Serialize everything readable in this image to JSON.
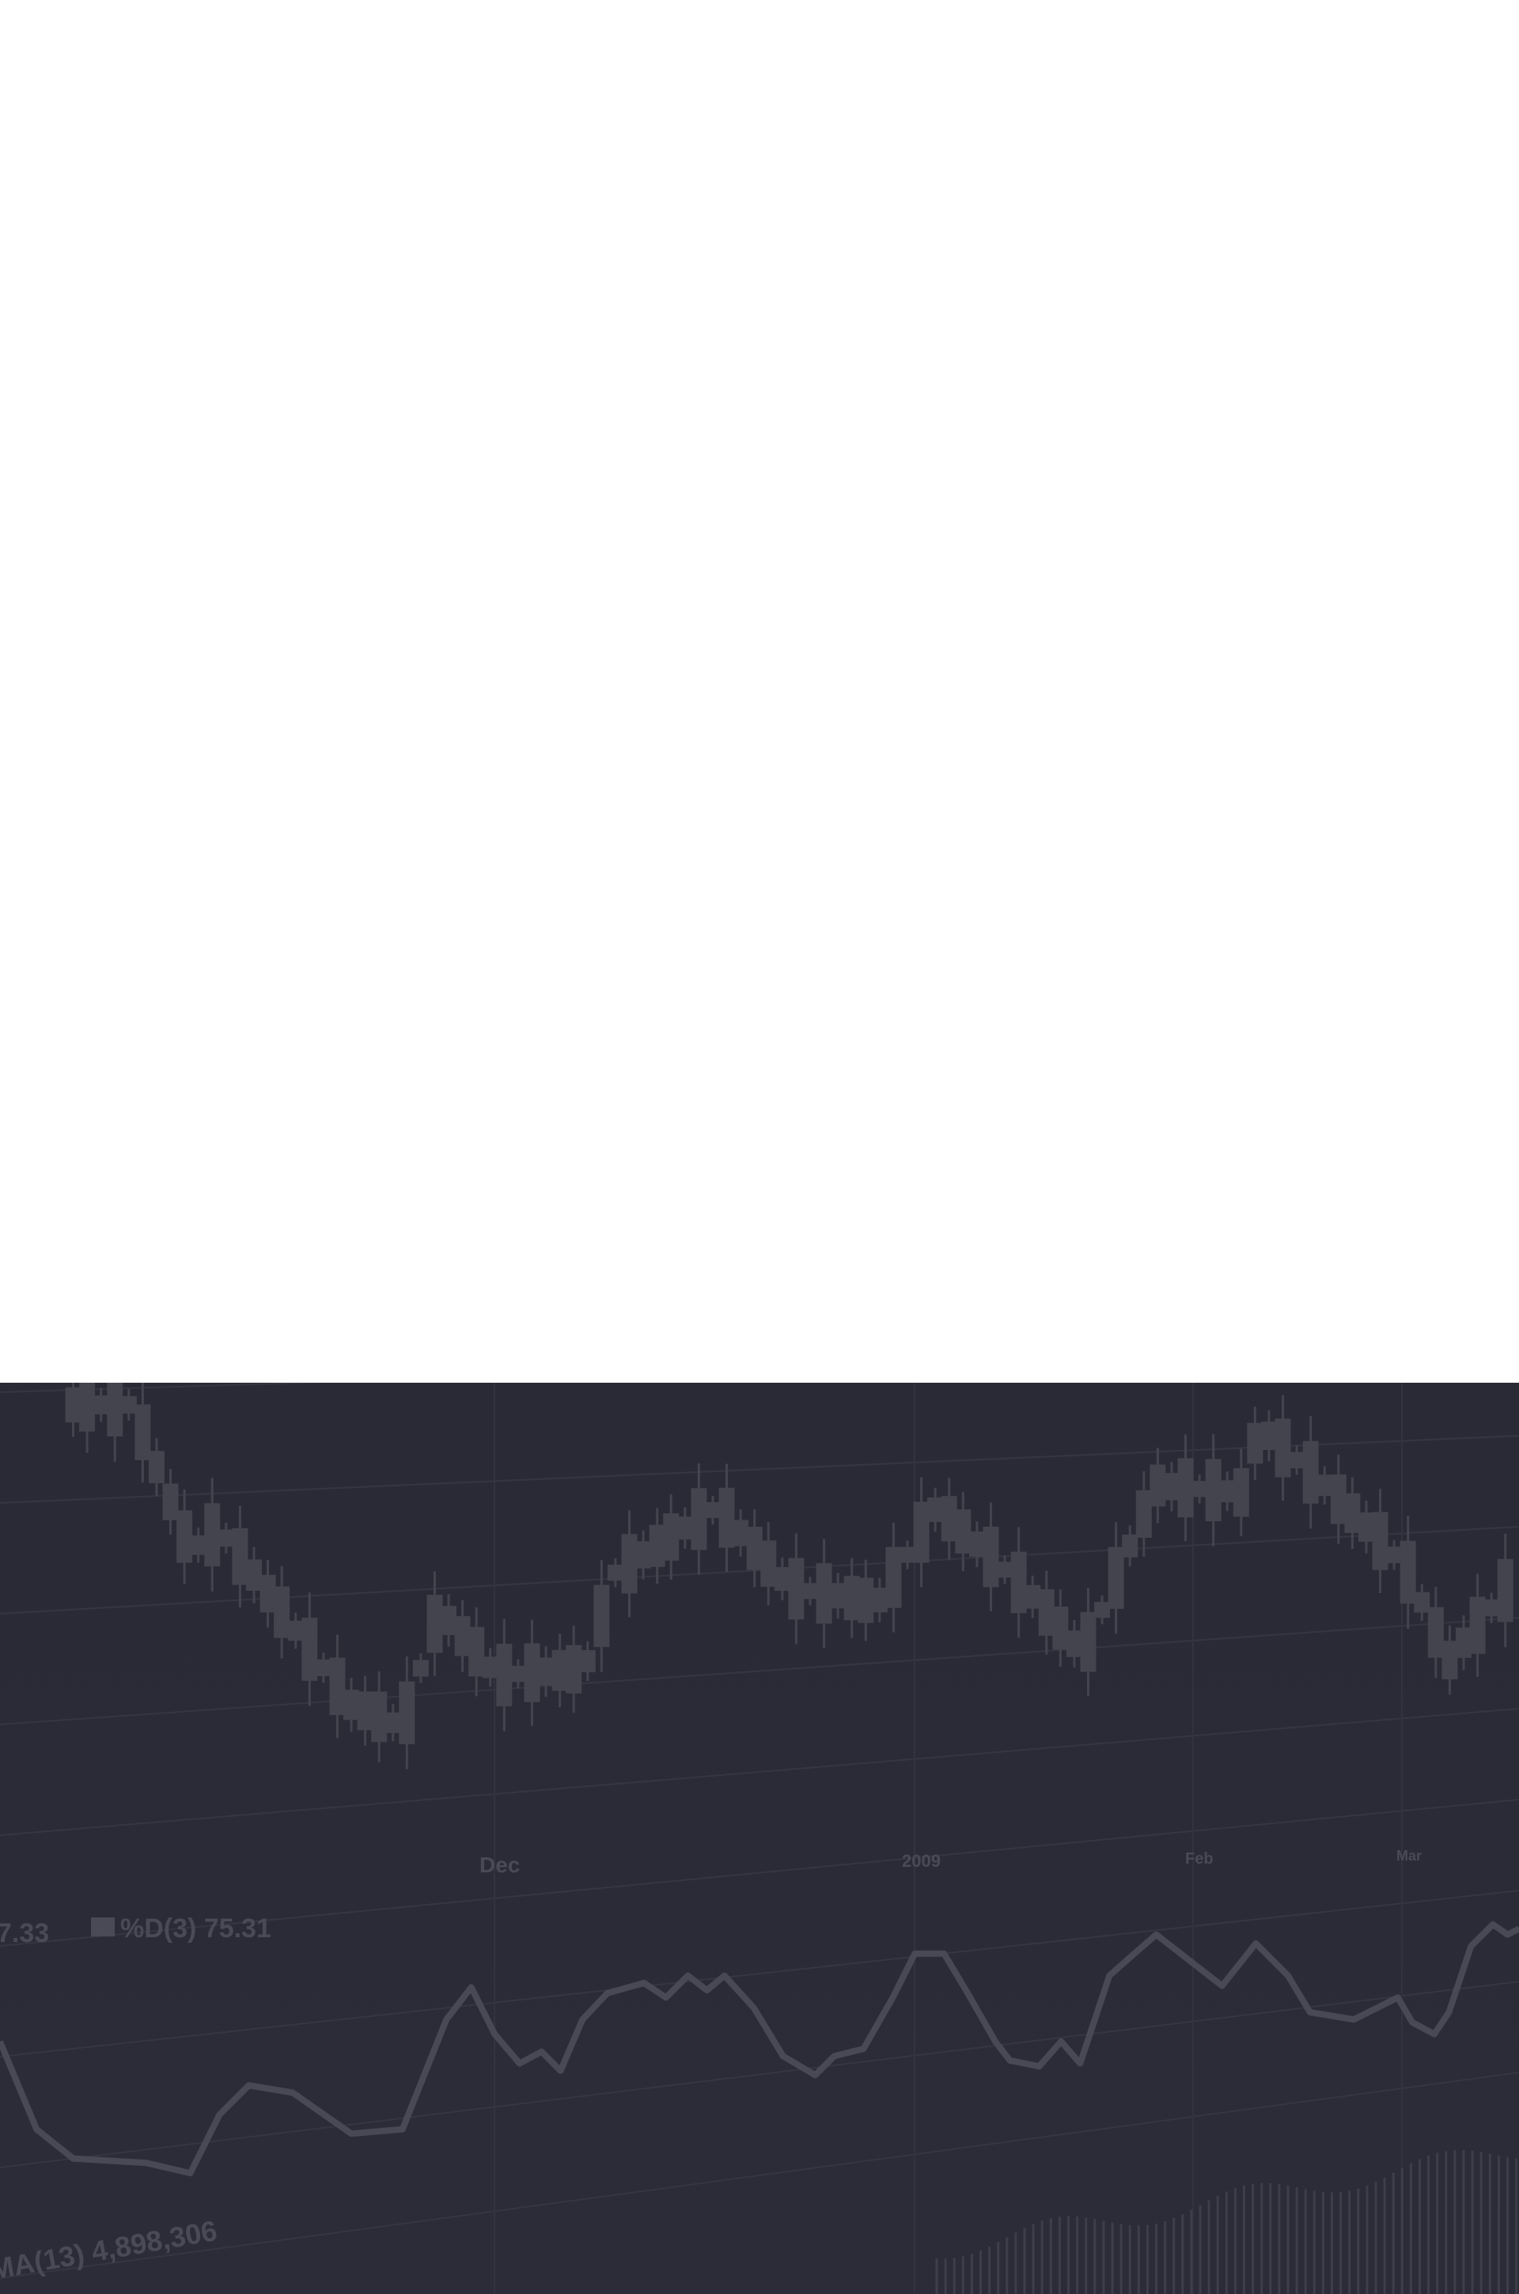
{
  "background_chart": {
    "axis_labels": [
      "Dec",
      "2009",
      "Feb",
      "Mar"
    ],
    "indicator_labels": [
      "7.33",
      "%D(3) 75.31",
      "MA(13) 4,898,306"
    ]
  }
}
